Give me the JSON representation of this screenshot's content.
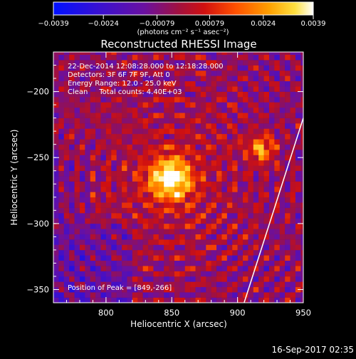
{
  "chart_data": {
    "type": "heatmap",
    "title": "Reconstructed RHESSI Image",
    "xlabel": "Heliocentric X (arcsec)",
    "ylabel": "Heliocentric Y (arcsec)",
    "xlim": [
      760,
      950
    ],
    "ylim": [
      -360,
      -170
    ],
    "x_ticks": [
      800,
      850,
      900,
      950
    ],
    "y_ticks": [
      -200,
      -250,
      -300,
      -350
    ],
    "x_tick_labels": [
      "800",
      "850",
      "900",
      "950"
    ],
    "y_tick_labels": [
      "−200",
      "−250",
      "−300",
      "−350"
    ],
    "colorbar": {
      "range": [
        -0.0039,
        0.0039
      ],
      "ticks": [
        -0.0039,
        -0.0024,
        -0.00079,
        0.00079,
        0.0024,
        0.0039
      ],
      "tick_labels": [
        "−0.0039",
        "−0.0024",
        "−0.00079",
        "0.00079",
        "0.0024",
        "0.0039"
      ],
      "unit_label": "(photons cm⁻² s⁻¹ asec⁻²)"
    },
    "annotations": [
      "22-Dec-2014 12:08:28.000 to 12:18:28.000",
      "Detectors: 3F 6F 7F 9F, Att 0",
      "Energy Range: 12.0 - 25.0 keV",
      "Clean     Total counts: 4.40E+03"
    ],
    "peak_label": "Position of Peak = [849,-266]",
    "peak": [
      849,
      -266
    ],
    "secondary_source": [
      918,
      -243
    ],
    "limb_line": [
      [
        905,
        -360
      ],
      [
        950,
        -220
      ]
    ]
  },
  "footer": {
    "timestamp": "16-Sep-2017 02:35"
  },
  "colors": {
    "background": "#000000",
    "text": "#ffffff",
    "colormap": [
      "#0010ff",
      "#3a10d0",
      "#6a10a0",
      "#a01040",
      "#d01010",
      "#ff5000",
      "#ffa000",
      "#ffe040",
      "#ffffff"
    ]
  }
}
